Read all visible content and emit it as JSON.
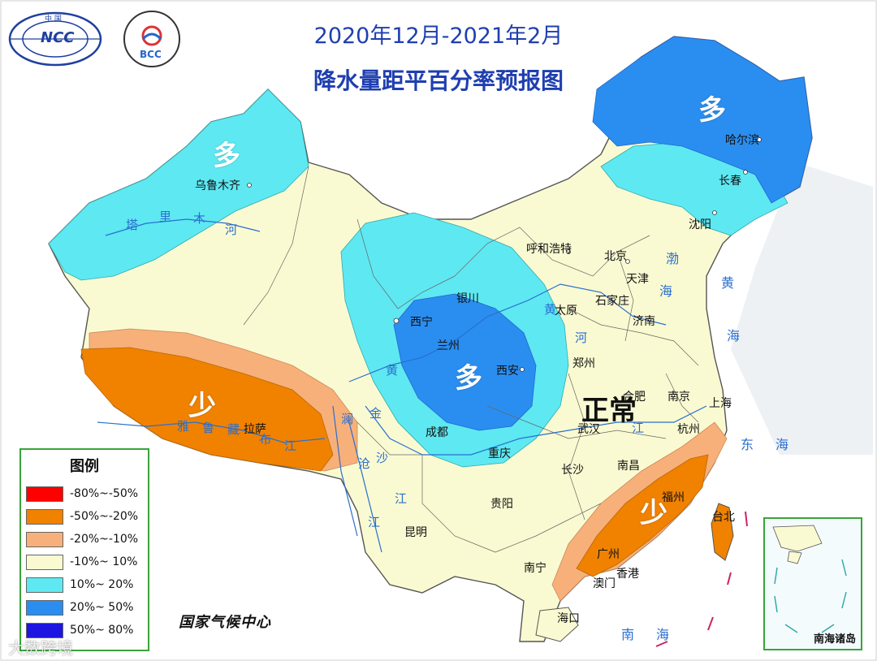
{
  "title": {
    "line1": "2020年12月-2021年2月",
    "line2": "降水量距平百分率预报图"
  },
  "logos": {
    "ncc_text": "NCC",
    "ncc_top": "中 国",
    "bcc_text": "BCC"
  },
  "region_labels": {
    "xinjiang": "多",
    "northeast": "多",
    "center": "多",
    "tibet": "少",
    "southeast": "少",
    "east": "正常"
  },
  "cities": {
    "urumqi": "乌鲁木齐",
    "harbin": "哈尔滨",
    "changchun": "长春",
    "shenyang": "沈阳",
    "hohhot": "呼和浩特",
    "beijing": "北京",
    "tianjin": "天津",
    "shijiazhuang": "石家庄",
    "taiyuan": "太原",
    "jinan": "济南",
    "yinchuan": "银川",
    "xining": "西宁",
    "lanzhou": "兰州",
    "xian": "西安",
    "zhengzhou": "郑州",
    "hefei": "合肥",
    "nanjing": "南京",
    "shanghai": "上海",
    "hangzhou": "杭州",
    "wuhan": "武汉",
    "chengdu": "成都",
    "chongqing": "重庆",
    "lhasa": "拉萨",
    "changsha": "长沙",
    "nanchang": "南昌",
    "fuzhou": "福州",
    "taibei": "台北",
    "guiyang": "贵阳",
    "kunming": "昆明",
    "guangzhou": "广州",
    "nanning": "南宁",
    "hongkong": "香港",
    "macau": "澳门",
    "haikou": "海口"
  },
  "rivers": {
    "tarim_1": "塔",
    "tarim_2": "里",
    "tarim_3": "木",
    "tarim_4": "河",
    "yarlung_1": "雅",
    "yarlung_2": "鲁",
    "yarlung_3": "藏",
    "yarlung_4": "布",
    "yarlung_5": "江",
    "huanghe_1": "黄",
    "huanghe_2": "黄",
    "huanghe_3": "河",
    "jinsha_1": "金",
    "jinsha_2": "沙",
    "jinsha_3": "江",
    "nu_1": "澜",
    "nu_2": "沧",
    "nu_3": "江",
    "yangtze": "江"
  },
  "seas": {
    "bohai": "渤",
    "bohai2": "海",
    "yellow1": "黄",
    "yellow2": "海",
    "east1": "东",
    "east2": "海",
    "south1": "南",
    "south2": "海"
  },
  "legend": {
    "title": "图例",
    "items": [
      {
        "label": "-80%~-50%",
        "color": "#ff0000"
      },
      {
        "label": "-50%~-20%",
        "color": "#f08200"
      },
      {
        "label": "-20%~-10%",
        "color": "#f7b07a"
      },
      {
        "label": "-10%~ 10%",
        "color": "#fafad2"
      },
      {
        "label": "10%~ 20%",
        "color": "#5ee8f2"
      },
      {
        "label": "20%~ 50%",
        "color": "#2a8ef0"
      },
      {
        "label": "50%~ 80%",
        "color": "#1c16e0"
      }
    ]
  },
  "inset_label": "南海诸岛",
  "producer": "国家气候中心",
  "watermark": "大数跨境",
  "colors": {
    "base": "#fafad2",
    "light_cyan": "#5ee8f2",
    "blue": "#2a8ef0",
    "orange": "#f08200",
    "light_orange": "#f7b07a",
    "title_blue": "#1f3fb0"
  }
}
